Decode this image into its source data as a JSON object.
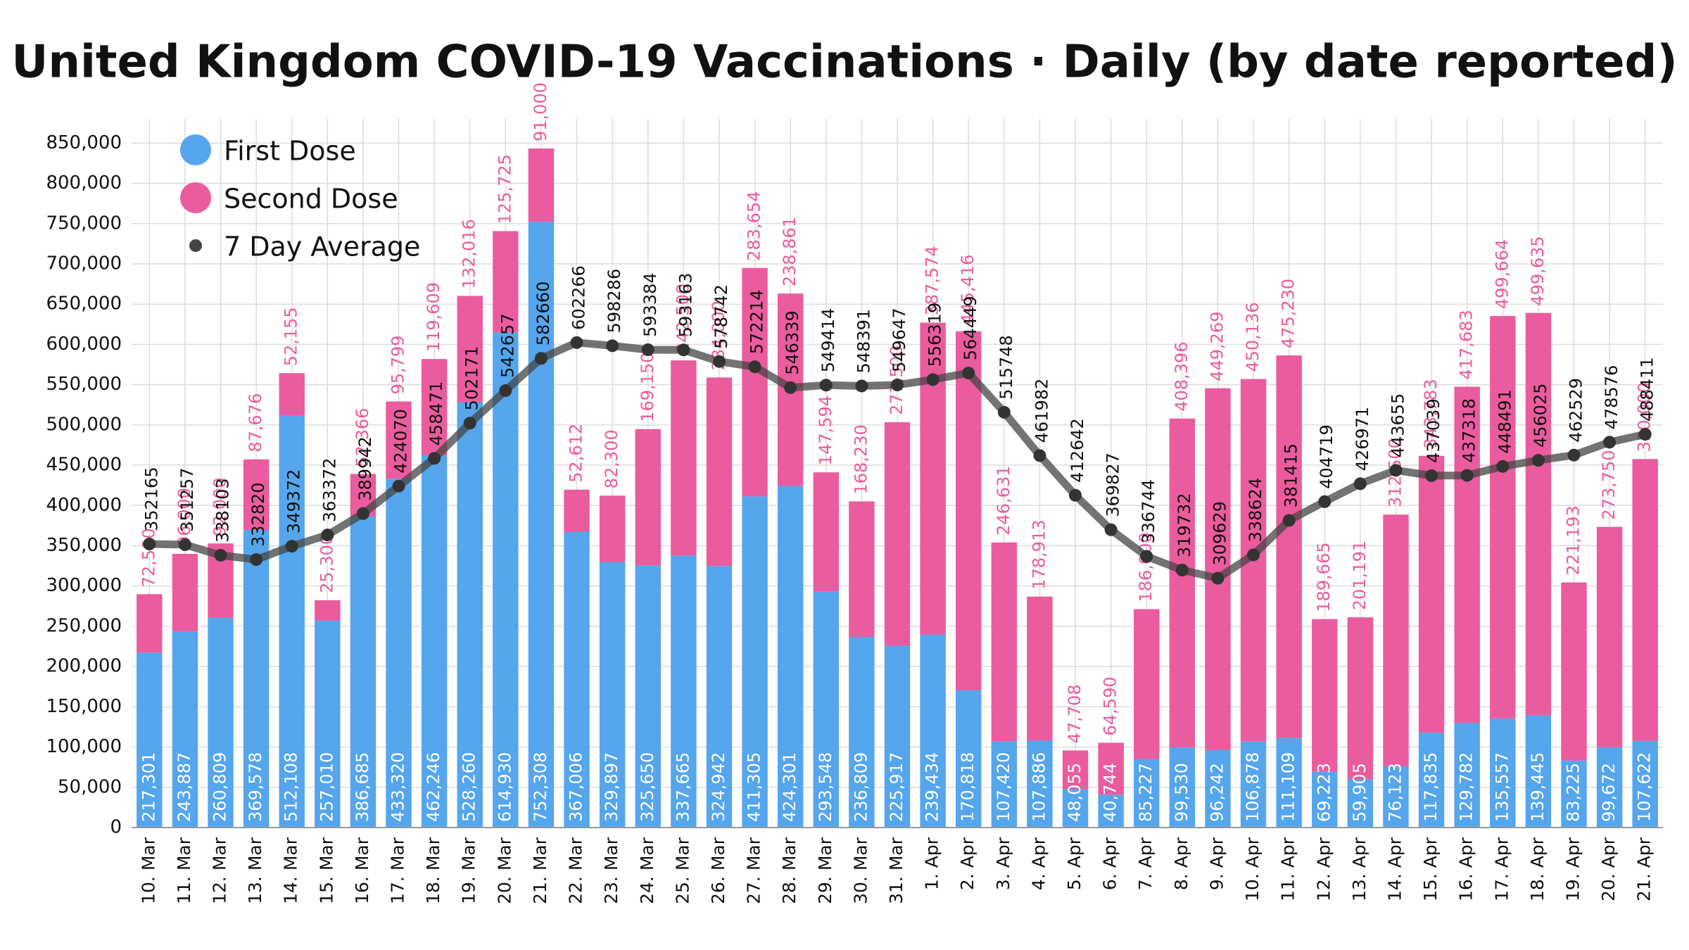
{
  "chart_data": {
    "type": "bar",
    "stacked": true,
    "title": "United Kingdom COVID-19 Vaccinations · Daily (by date reported)",
    "categories": [
      "10. Mar",
      "11. Mar",
      "12. Mar",
      "13. Mar",
      "14. Mar",
      "15. Mar",
      "16. Mar",
      "17. Mar",
      "18. Mar",
      "19. Mar",
      "20. Mar",
      "21. Mar",
      "22. Mar",
      "23. Mar",
      "24. Mar",
      "25. Mar",
      "26. Mar",
      "27. Mar",
      "28. Mar",
      "29. Mar",
      "30. Mar",
      "31. Mar",
      "1. Apr",
      "2. Apr",
      "3. Apr",
      "4. Apr",
      "5. Apr",
      "6. Apr",
      "7. Apr",
      "8. Apr",
      "9. Apr",
      "10. Apr",
      "11. Apr",
      "12. Apr",
      "13. Apr",
      "14. Apr",
      "15. Apr",
      "16. Apr",
      "17. Apr",
      "18. Apr",
      "19. Apr",
      "20. Apr",
      "21. Apr"
    ],
    "series": [
      {
        "name": "First Dose",
        "color": "#55a6ec",
        "values": [
          217301,
          243887,
          260809,
          369578,
          512108,
          257010,
          386685,
          433320,
          462246,
          528260,
          614930,
          752308,
          367006,
          329897,
          325650,
          337665,
          324942,
          411305,
          424301,
          293548,
          236809,
          225917,
          239434,
          170818,
          107420,
          107886,
          48055,
          40744,
          85227,
          99530,
          96242,
          106878,
          111109,
          69223,
          59905,
          76123,
          117835,
          129782,
          135557,
          139445,
          83225,
          99672,
          107622
        ],
        "value_labels": [
          "217,301",
          "243,887",
          "260,809",
          "369,578",
          "512,108",
          "257,010",
          "386,685",
          "433,320",
          "462,246",
          "528,260",
          "614,930",
          "752,308",
          "367,006",
          "329,897",
          "325,650",
          "337,665",
          "324,942",
          "411,305",
          "424,301",
          "293,548",
          "236,809",
          "225,917",
          "239,434",
          "170,818",
          "107,420",
          "107,886",
          "48,055",
          "40,744",
          "85,227",
          "99,530",
          "96,242",
          "106,878",
          "111,109",
          "69,223",
          "59,905",
          "76,123",
          "117,835",
          "129,782",
          "135,557",
          "139,445",
          "83,225",
          "99,672",
          "107,622"
        ]
      },
      {
        "name": "Second Dose",
        "color": "#ea5c9e",
        "values": [
          72500,
          96000,
          92000,
          87676,
          52155,
          25300,
          52366,
          95799,
          119609,
          132016,
          125725,
          91000,
          52612,
          82300,
          169150,
          242500,
          234000,
          283654,
          238861,
          147594,
          168230,
          277500,
          387574,
          445416,
          246631,
          178913,
          47708,
          64590,
          186000,
          408396,
          449269,
          450136,
          475230,
          189665,
          201191,
          312500,
          343783,
          417683,
          499664,
          499635,
          221193,
          273750,
          350000
        ],
        "value_labels": [
          "72,500",
          "96,000",
          "92,000",
          "87,676",
          "52,155",
          "25,300",
          "52,366",
          "95,799",
          "119,609",
          "132,016",
          "125,725",
          "91,000",
          "52,612",
          "82,300",
          "169,150",
          "242,500",
          "234,000",
          "283,654",
          "238,861",
          "147,594",
          "168,230",
          "277,500",
          "387,574",
          "445,416",
          "246,631",
          "178,913",
          "47,708",
          "64,590",
          "186,000",
          "408,396",
          "449,269",
          "450,136",
          "475,230",
          "189,665",
          "201,191",
          "312,500",
          "343,783",
          "417,683",
          "499,664",
          "499,635",
          "221,193",
          "273,750",
          "350,000"
        ]
      },
      {
        "name": "7 Day Average",
        "type": "line",
        "color": "#444444",
        "values": [
          352165,
          351257,
          338103,
          332820,
          349372,
          363372,
          389942,
          424070,
          458471,
          502171,
          542657,
          582660,
          602266,
          598286,
          593384,
          593163,
          578742,
          572214,
          546339,
          549414,
          548391,
          549647,
          556319,
          564449,
          515748,
          461982,
          412642,
          369827,
          336744,
          319732,
          309629,
          338624,
          381415,
          404719,
          426971,
          443655,
          437039,
          437318,
          448491,
          456025,
          462529,
          478576,
          488411
        ]
      }
    ],
    "ylim": [
      0,
      880000
    ],
    "yticks": [
      0,
      {
        "value": 50000,
        "label": "50,000"
      },
      {
        "value": 100000,
        "label": "100,000"
      },
      {
        "value": 150000,
        "label": "150,000"
      },
      {
        "value": 200000,
        "label": "200,000"
      },
      {
        "value": 250000,
        "label": "250,000"
      },
      {
        "value": 300000,
        "label": "300,000"
      },
      {
        "value": 350000,
        "label": "350,000"
      },
      {
        "value": 400000,
        "label": "400,000"
      },
      {
        "value": 450000,
        "label": "450,000"
      },
      {
        "value": 500000,
        "label": "500,000"
      },
      {
        "value": 550000,
        "label": "550,000"
      },
      {
        "value": 600000,
        "label": "600,000"
      },
      {
        "value": 650000,
        "label": "650,000"
      },
      {
        "value": 700000,
        "label": "700,000"
      },
      {
        "value": 750000,
        "label": "750,000"
      },
      {
        "value": 800000,
        "label": "800,000"
      },
      {
        "value": 850000,
        "label": "850,000"
      }
    ],
    "grid": true,
    "legend": "top-left"
  }
}
